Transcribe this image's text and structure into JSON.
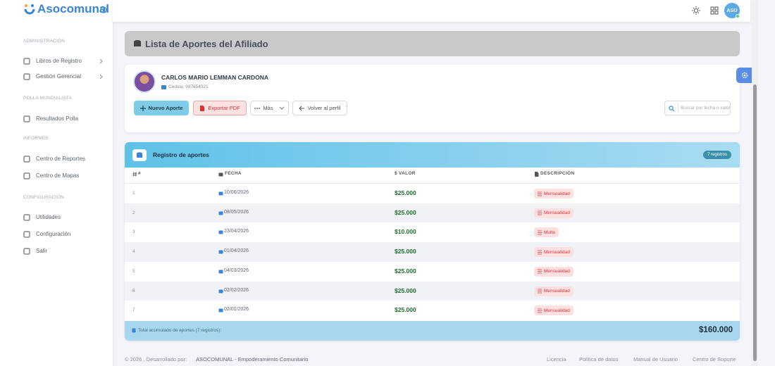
{
  "brand": "Asocomunal",
  "topbar": {
    "avatar": "ASO"
  },
  "nav": [
    {
      "title": "ADMINISTRACIÓN",
      "items": [
        "Libros de Registro",
        "Gestión Gerencial"
      ]
    },
    {
      "title": "POLLA MUNDIALISTA",
      "items": [
        "Resultados Polla"
      ]
    },
    {
      "title": "INFORMES",
      "items": [
        "Centro de Reportes",
        "Centro de Mapas"
      ]
    },
    {
      "title": "CONFIGURACIÓN",
      "items": [
        "Utilidades",
        "Configuración",
        "Salir"
      ]
    }
  ],
  "header": {
    "title": "Lista de Aportes del Afiliado"
  },
  "profile": {
    "name": "CARLOS MARIO LEMMAN CARDONA",
    "id_label": "Cedula: 987654321"
  },
  "actions": {
    "new": "Nuevo Aporte",
    "pdf": "Exportar PDF",
    "more": "Más",
    "back": "Volver al perfil",
    "search_placeholder": "Buscar por fecha o valor"
  },
  "table": {
    "title": "Registro de aportes",
    "badge": "7 registros",
    "columns": [
      "#",
      "FECHA",
      "$ VALOR",
      "DESCRIPCIÓN"
    ],
    "rows": [
      {
        "n": 1,
        "date": "10/06/2026",
        "value": "$25.000",
        "desc": "Mensualidad"
      },
      {
        "n": 2,
        "date": "08/05/2026",
        "value": "$25.000",
        "desc": "Mensualidad"
      },
      {
        "n": 3,
        "date": "23/04/2026",
        "value": "$10.000",
        "desc": "Multa"
      },
      {
        "n": 4,
        "date": "01/04/2026",
        "value": "$25.000",
        "desc": "Mensualidad"
      },
      {
        "n": 5,
        "date": "04/03/2026",
        "value": "$25.000",
        "desc": "Mensualidad"
      },
      {
        "n": 6,
        "date": "02/02/2026",
        "value": "$25.000",
        "desc": "Mensualidad"
      },
      {
        "n": 7,
        "date": "02/01/2026",
        "value": "$25.000",
        "desc": "Mensualidad"
      }
    ],
    "footer_label": "Total acumulado de aportes (7 registros):",
    "total": "$160.000"
  },
  "footer": {
    "copyright": "© 2026 , Desarrollado por:",
    "org": "ASOCOMUNAL - Empoderamiento Comunitario",
    "links": [
      "Licencia",
      "Política de datos",
      "Manual de Usuario",
      "Centro de Soporte"
    ]
  }
}
